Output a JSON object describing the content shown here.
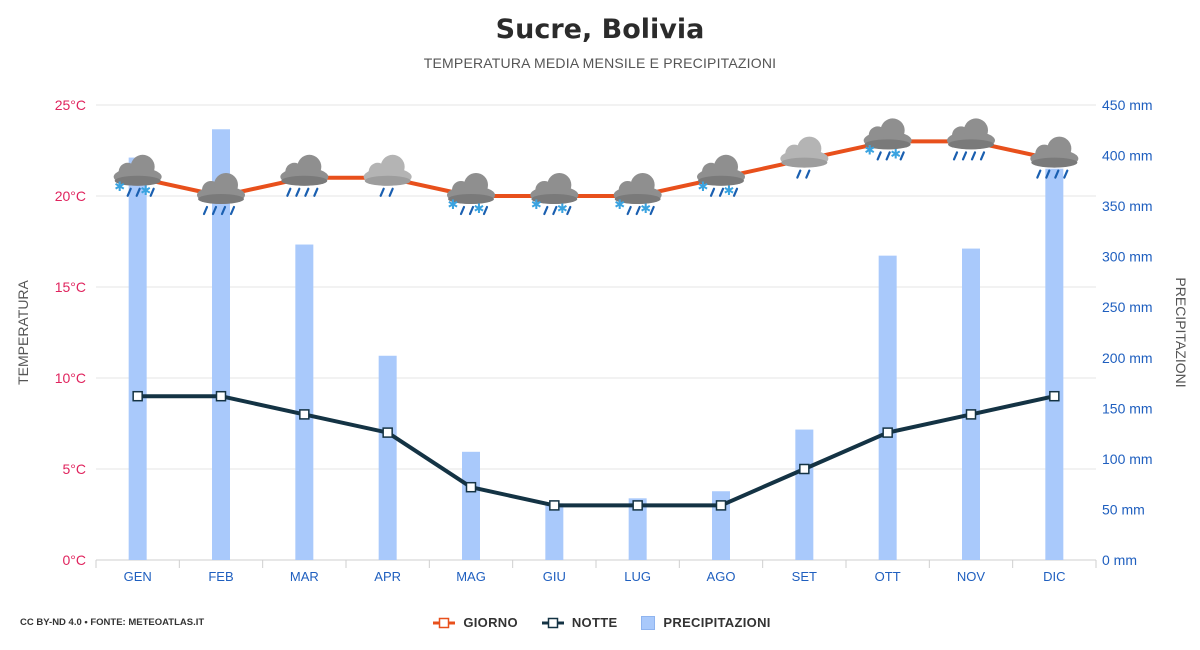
{
  "title": "Sucre, Bolivia",
  "subtitle": "TEMPERATURA MEDIA MENSILE E PRECIPITAZIONI",
  "credit": "CC BY-ND 4.0 • FONTE: METEOATLAS.IT",
  "legend": {
    "day": "GIORNO",
    "night": "NOTTE",
    "precip": "PRECIPITAZIONI"
  },
  "colors": {
    "day": "#e8501c",
    "night": "#143344",
    "precip": "#a9c9fb",
    "left_axis": "#e0245e",
    "right_axis": "#1f5fbf",
    "grid": "#e6e6e6"
  },
  "chart_data": {
    "type": "bar+line",
    "categories": [
      "GEN",
      "FEB",
      "MAR",
      "APR",
      "MAG",
      "GIU",
      "LUG",
      "AGO",
      "SET",
      "OTT",
      "NOV",
      "DIC"
    ],
    "ylabel_left": "TEMPERATURA",
    "ylabel_right": "PRECIPITAZIONI",
    "ylim_left": [
      0,
      25
    ],
    "ylim_right": [
      0,
      450
    ],
    "left_ticks": [
      "0°C",
      "5°C",
      "10°C",
      "15°C",
      "20°C",
      "25°C"
    ],
    "right_ticks": [
      "0 mm",
      "50 mm",
      "100 mm",
      "150 mm",
      "200 mm",
      "250 mm",
      "300 mm",
      "350 mm",
      "400 mm",
      "450 mm"
    ],
    "series": [
      {
        "name": "GIORNO",
        "type": "line",
        "axis": "left",
        "values": [
          21,
          20,
          21,
          21,
          20,
          20,
          20,
          21,
          22,
          23,
          23,
          22
        ]
      },
      {
        "name": "NOTTE",
        "type": "line",
        "axis": "left",
        "values": [
          9,
          9,
          8,
          7,
          4,
          3,
          3,
          3,
          5,
          7,
          8,
          9
        ]
      },
      {
        "name": "PRECIPITAZIONI",
        "type": "bar",
        "axis": "right",
        "values": [
          398,
          426,
          312,
          202,
          107,
          56,
          61,
          68,
          129,
          301,
          308,
          387
        ]
      }
    ],
    "weather_icons": [
      "cloud-rain-snow-icon",
      "cloud-rain-icon",
      "cloud-rain-icon",
      "cloud-light-rain-icon",
      "cloud-rain-snow-icon",
      "cloud-rain-snow-icon",
      "cloud-rain-snow-icon",
      "cloud-rain-snow-icon",
      "cloud-light-rain-icon",
      "cloud-rain-snow-icon",
      "cloud-rain-icon",
      "cloud-rain-icon"
    ],
    "grid": true,
    "legend_position": "bottom"
  }
}
